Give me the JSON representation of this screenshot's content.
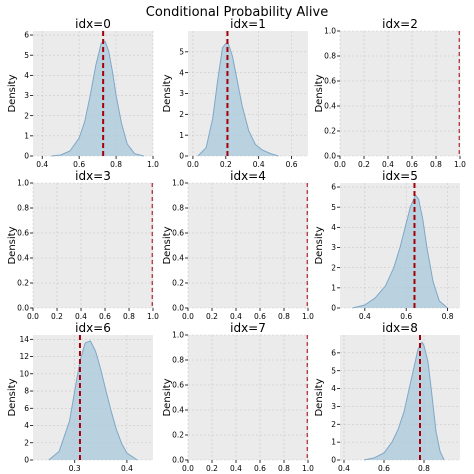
{
  "figure": {
    "title": "Conditional Probability Alive",
    "ylabel": "Density"
  },
  "colors": {
    "plot_bg": "#ebebeb",
    "grid": "#c9c9c9",
    "kde_fill": "#a9c8dc",
    "kde_line": "#7fa8c6",
    "marker": "#a3000a"
  },
  "chart_data": [
    {
      "type": "area",
      "title": "idx=0",
      "xlim": [
        0.35,
        1.0
      ],
      "ylim": [
        0,
        6.2
      ],
      "xticks": [
        0.4,
        0.6,
        0.8,
        1.0
      ],
      "yticks": [
        0,
        1,
        2,
        3,
        4,
        5,
        6
      ],
      "marker_x": 0.73,
      "x": [
        0.45,
        0.5,
        0.55,
        0.6,
        0.63,
        0.66,
        0.69,
        0.72,
        0.74,
        0.76,
        0.78,
        0.8,
        0.83,
        0.86,
        0.9,
        0.95
      ],
      "y": [
        0.0,
        0.05,
        0.25,
        0.9,
        1.7,
        3.0,
        4.5,
        5.6,
        5.7,
        5.2,
        4.2,
        3.0,
        1.6,
        0.6,
        0.12,
        0.0
      ]
    },
    {
      "type": "area",
      "title": "idx=1",
      "xlim": [
        -0.03,
        0.7
      ],
      "ylim": [
        0,
        6.0
      ],
      "xticks": [
        0.0,
        0.2,
        0.4,
        0.6
      ],
      "yticks": [
        0,
        1,
        2,
        3,
        4,
        5
      ],
      "marker_x": 0.21,
      "x": [
        0.03,
        0.08,
        0.12,
        0.15,
        0.18,
        0.21,
        0.24,
        0.27,
        0.3,
        0.34,
        0.38,
        0.42,
        0.47,
        0.52
      ],
      "y": [
        0.0,
        0.4,
        1.8,
        3.6,
        5.2,
        5.5,
        4.8,
        3.6,
        2.4,
        1.2,
        0.55,
        0.3,
        0.12,
        0.0
      ]
    },
    {
      "type": "area",
      "title": "idx=2",
      "xlim": [
        0,
        1
      ],
      "ylim": [
        0,
        1
      ],
      "xticks": [
        0.0,
        0.2,
        0.4,
        0.6,
        0.8,
        1.0
      ],
      "yticks": [
        0.0,
        0.2,
        0.4,
        0.6,
        0.8,
        1.0
      ],
      "marker_x": 1.0,
      "x": [],
      "y": []
    },
    {
      "type": "area",
      "title": "idx=3",
      "xlim": [
        0,
        1
      ],
      "ylim": [
        0,
        1
      ],
      "xticks": [
        0.0,
        0.2,
        0.4,
        0.6,
        0.8,
        1.0
      ],
      "yticks": [
        0.0,
        0.2,
        0.4,
        0.6,
        0.8,
        1.0
      ],
      "marker_x": 1.0,
      "x": [],
      "y": []
    },
    {
      "type": "area",
      "title": "idx=4",
      "xlim": [
        0,
        1
      ],
      "ylim": [
        0,
        1
      ],
      "xticks": [
        0.0,
        0.2,
        0.4,
        0.6,
        0.8,
        1.0
      ],
      "yticks": [
        0.0,
        0.2,
        0.4,
        0.6,
        0.8,
        1.0
      ],
      "marker_x": 1.0,
      "x": [],
      "y": []
    },
    {
      "type": "area",
      "title": "idx=5",
      "xlim": [
        0.28,
        0.86
      ],
      "ylim": [
        0,
        6.2
      ],
      "xticks": [
        0.4,
        0.6,
        0.8
      ],
      "yticks": [
        0,
        1,
        2,
        3,
        4,
        5,
        6
      ],
      "marker_x": 0.64,
      "x": [
        0.34,
        0.4,
        0.45,
        0.5,
        0.54,
        0.57,
        0.6,
        0.62,
        0.645,
        0.66,
        0.68,
        0.7,
        0.73,
        0.76,
        0.8
      ],
      "y": [
        0.0,
        0.15,
        0.5,
        1.1,
        2.0,
        3.0,
        4.2,
        5.0,
        5.6,
        5.4,
        4.4,
        3.0,
        1.3,
        0.35,
        0.0
      ]
    },
    {
      "type": "area",
      "title": "idx=6",
      "xlim": [
        0.22,
        0.45
      ],
      "ylim": [
        0,
        14.5
      ],
      "xticks": [
        0.3,
        0.4
      ],
      "yticks": [
        0,
        2,
        4,
        6,
        8,
        10,
        12,
        14
      ],
      "marker_x": 0.31,
      "x": [
        0.25,
        0.27,
        0.29,
        0.3,
        0.31,
        0.32,
        0.33,
        0.34,
        0.35,
        0.36,
        0.37,
        0.38,
        0.39,
        0.4,
        0.42
      ],
      "y": [
        0.0,
        1.0,
        4.5,
        8.0,
        11.5,
        13.6,
        13.8,
        12.6,
        10.5,
        8.0,
        5.6,
        3.5,
        1.9,
        0.8,
        0.0
      ]
    },
    {
      "type": "area",
      "title": "idx=7",
      "xlim": [
        0,
        1
      ],
      "ylim": [
        0,
        1
      ],
      "xticks": [
        0.0,
        0.2,
        0.4,
        0.6,
        0.8,
        1.0
      ],
      "yticks": [
        0.0,
        0.2,
        0.4,
        0.6,
        0.8,
        1.0
      ],
      "marker_x": 1.0,
      "x": [],
      "y": []
    },
    {
      "type": "area",
      "title": "idx=8",
      "xlim": [
        0.38,
        0.98
      ],
      "ylim": [
        0,
        7.0
      ],
      "xticks": [
        0.4,
        0.6,
        0.8
      ],
      "yticks": [
        0,
        1,
        2,
        3,
        4,
        5,
        6
      ],
      "marker_x": 0.78,
      "x": [
        0.5,
        0.55,
        0.6,
        0.64,
        0.67,
        0.7,
        0.73,
        0.75,
        0.77,
        0.79,
        0.8,
        0.82,
        0.84,
        0.86,
        0.88,
        0.9
      ],
      "y": [
        0.0,
        0.12,
        0.4,
        1.0,
        1.7,
        2.7,
        4.2,
        5.2,
        6.2,
        6.6,
        6.4,
        5.5,
        3.6,
        1.6,
        0.5,
        0.0
      ]
    }
  ]
}
